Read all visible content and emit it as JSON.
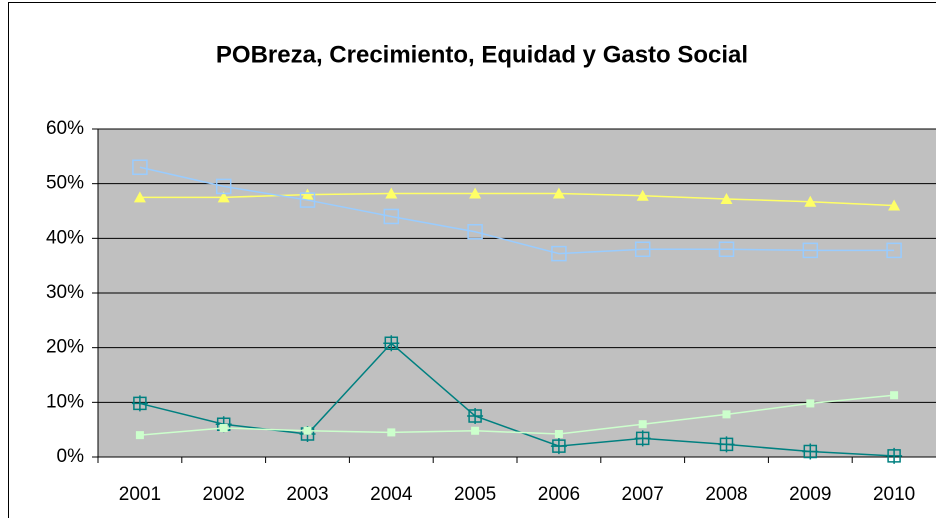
{
  "chart_data": {
    "type": "line",
    "title": "POBreza, Crecimiento, Equidad y Gasto Social",
    "categories": [
      "2001",
      "2002",
      "2003",
      "2004",
      "2005",
      "2006",
      "2007",
      "2008",
      "2009",
      "2010"
    ],
    "series": [
      {
        "color": "#ffff66",
        "marker": "triangle",
        "values": [
          47.5,
          47.5,
          48,
          48.2,
          48.2,
          48.2,
          47.8,
          47.2,
          46.7,
          46
        ]
      },
      {
        "color": "#99ccff",
        "marker": "square",
        "values": [
          53,
          49.5,
          47,
          44,
          41.2,
          37.2,
          38,
          38,
          37.8,
          37.8
        ]
      },
      {
        "color": "#008080",
        "marker": "plus-square",
        "values": [
          9.8,
          6,
          4.2,
          20.8,
          7.5,
          2,
          3.4,
          2.3,
          1,
          0.2
        ]
      },
      {
        "color": "#ccffcc",
        "marker": "dot",
        "values": [
          4,
          5.3,
          4.8,
          4.5,
          4.8,
          4.2,
          6,
          7.8,
          9.8,
          11.3
        ]
      }
    ],
    "ylim": [
      0,
      60
    ],
    "yticks": [
      {
        "value": 0,
        "label": "0%"
      },
      {
        "value": 10,
        "label": "10%"
      },
      {
        "value": 20,
        "label": "20%"
      },
      {
        "value": 30,
        "label": "30%"
      },
      {
        "value": 40,
        "label": "40%"
      },
      {
        "value": 50,
        "label": "50%"
      },
      {
        "value": 60,
        "label": "60%"
      }
    ],
    "grid": true
  }
}
